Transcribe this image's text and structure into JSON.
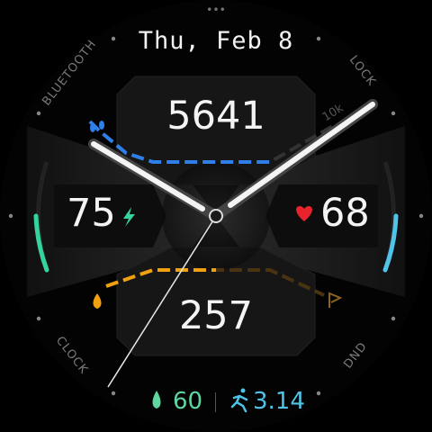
{
  "header": {
    "date": "Thu, Feb 8",
    "more_dots": "•••"
  },
  "metrics": {
    "steps": "5641",
    "steps_goal_label": "10k",
    "battery": "75",
    "heart_rate": "68",
    "calories": "257",
    "humidity": "60",
    "distance": "3.14"
  },
  "shortcuts": {
    "top_left": "BLUETOOTH",
    "top_right": "LOCK",
    "bottom_left": "CLOCK",
    "bottom_right": "DND"
  },
  "progress": {
    "steps_fraction": 0.56,
    "calories_fraction": 0.35,
    "battery_fraction": 0.75,
    "heart_rate_fraction": 0.6
  },
  "colors": {
    "steps": "#2f7fe8",
    "calories": "#f0a010",
    "battery": "#35d3a0",
    "heart": "#e8232e",
    "distance": "#4fc4e8",
    "humidity": "#5fd6a0"
  },
  "icons": {
    "steps": "footprints-icon",
    "battery": "lightning-bolt-icon",
    "heart": "heart-icon",
    "calories": "flame-icon",
    "humidity": "water-drop-icon",
    "distance": "running-person-icon",
    "goal": "flag-icon"
  }
}
